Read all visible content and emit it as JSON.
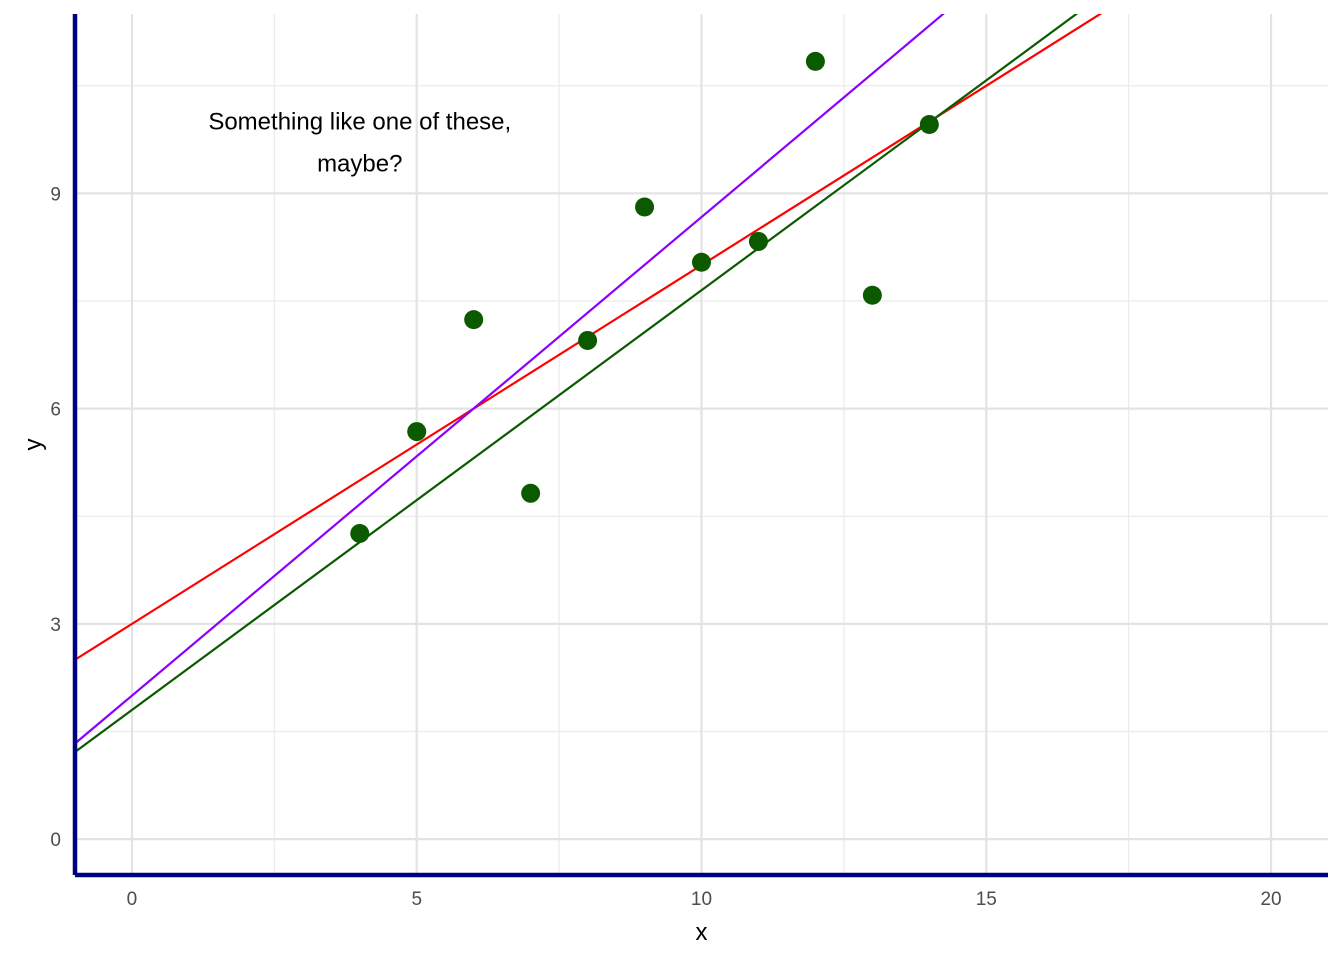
{
  "chart_data": {
    "type": "scatter",
    "title": "",
    "xlabel": "x",
    "ylabel": "y",
    "xlim": [
      -1,
      21
    ],
    "ylim": [
      -0.5,
      11.5
    ],
    "x_ticks": [
      0,
      5,
      10,
      15,
      20
    ],
    "y_ticks": [
      0,
      3,
      6,
      9
    ],
    "x_tick_labels": [
      "0",
      "5",
      "10",
      "15",
      "20"
    ],
    "y_tick_labels": [
      "0",
      "3",
      "6",
      "9"
    ],
    "grid": true,
    "points": {
      "color": "#0b5a00",
      "x": [
        4,
        5,
        6,
        7,
        8,
        9,
        10,
        11,
        12,
        13,
        14
      ],
      "y": [
        4.26,
        5.68,
        7.24,
        4.82,
        6.95,
        8.81,
        8.04,
        8.33,
        10.84,
        7.58,
        9.96
      ]
    },
    "lines": [
      {
        "color": "#ff0000",
        "intercept": 3.0,
        "slope": 0.5
      },
      {
        "color": "#8b00ff",
        "intercept": 2.0,
        "slope": 0.667
      },
      {
        "color": "#0b5a00",
        "intercept": 1.8,
        "slope": 0.585
      }
    ],
    "annotation": {
      "lines": [
        "Something like one of these,",
        "maybe?"
      ],
      "x": 4.0,
      "y": 9.85
    },
    "axis_line_color": "#000080"
  }
}
